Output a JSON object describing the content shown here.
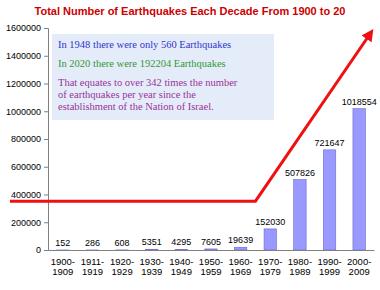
{
  "chart_data": {
    "type": "bar",
    "title": "Total Number of Earthquakes Each Decade From 1900 to 20",
    "categories": [
      "1900-1909",
      "1911-1919",
      "1920-1929",
      "1930-1939",
      "1940-1949",
      "1950-1959",
      "1960-1969",
      "1970-1979",
      "1980-1989",
      "1990-1999",
      "2000-2009"
    ],
    "values": [
      152,
      286,
      608,
      5351,
      4295,
      7605,
      19639,
      152030,
      507826,
      721647,
      1018554
    ],
    "color": "#9999ff",
    "ylim": [
      0,
      1600000
    ],
    "yticks": [
      0,
      200000,
      400000,
      600000,
      800000,
      1000000,
      1200000,
      1400000,
      1600000
    ],
    "grid": false,
    "data_labels": true,
    "annotations": [
      {
        "text": [
          "In 1948 there were only 560 Earthquakes"
        ],
        "color": "#3333cc"
      },
      {
        "text": [
          "In 2020 there were 192204 Earthquakes"
        ],
        "color": "#339933"
      },
      {
        "text": [
          "That equates to over 342 times the number",
          "of earthquakes per year since the",
          "establishment of the Nation of Israel."
        ],
        "color": "#993399"
      }
    ]
  }
}
